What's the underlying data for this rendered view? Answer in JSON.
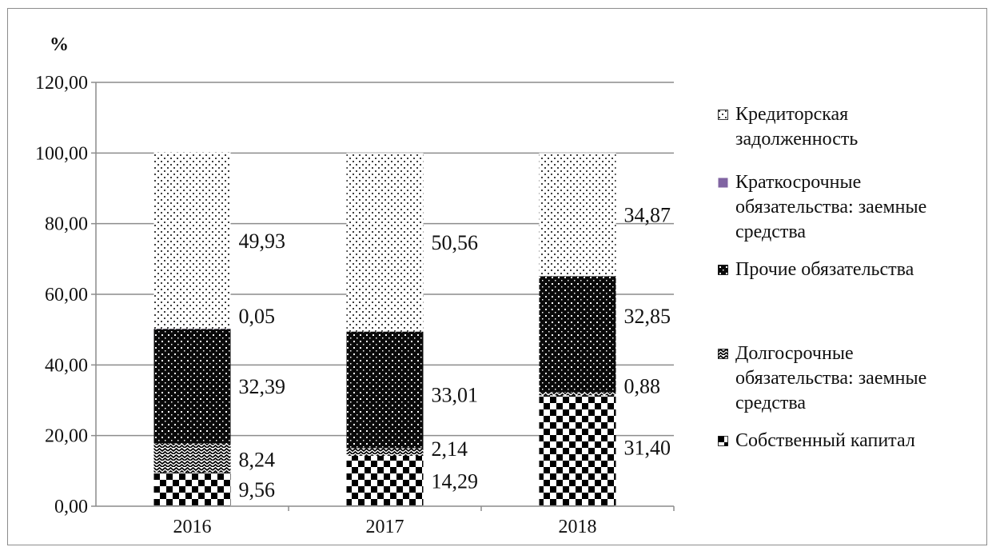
{
  "chart_data": {
    "type": "bar",
    "stacked": true,
    "ylabel": "%",
    "ylim": [
      0,
      120
    ],
    "yticks": [
      "0,00",
      "20,00",
      "40,00",
      "60,00",
      "80,00",
      "100,00",
      "120,00"
    ],
    "grid": true,
    "legend_position": "right",
    "categories": [
      "2016",
      "2017",
      "2018"
    ],
    "series": [
      {
        "name": "Собственный капитал",
        "values": [
          9.56,
          14.29,
          31.4
        ],
        "labels": [
          "9,56",
          "14,29",
          "31,40"
        ],
        "pattern": "checker"
      },
      {
        "name": "Долгосрочные обязательства: заемные средства",
        "values": [
          8.24,
          2.14,
          0.88
        ],
        "labels": [
          "8,24",
          "2,14",
          "0,88"
        ],
        "pattern": "wave"
      },
      {
        "name": "Прочие обязательства",
        "values": [
          32.39,
          33.01,
          32.85
        ],
        "labels": [
          "32,39",
          "33,01",
          "32,85"
        ],
        "pattern": "dark-dots"
      },
      {
        "name": "Краткосрочные обязательства: заемные средства",
        "values": [
          0.05,
          0,
          0
        ],
        "labels": [
          "0,05",
          "",
          ""
        ],
        "pattern": "solid",
        "color": "#8064a2"
      },
      {
        "name": "Кредиторская задолженность",
        "values": [
          49.93,
          50.56,
          34.87
        ],
        "labels": [
          "49,93",
          "50,56",
          "34,87"
        ],
        "pattern": "light-dots"
      }
    ]
  },
  "legend_order": [
    4,
    3,
    2,
    1,
    0
  ]
}
